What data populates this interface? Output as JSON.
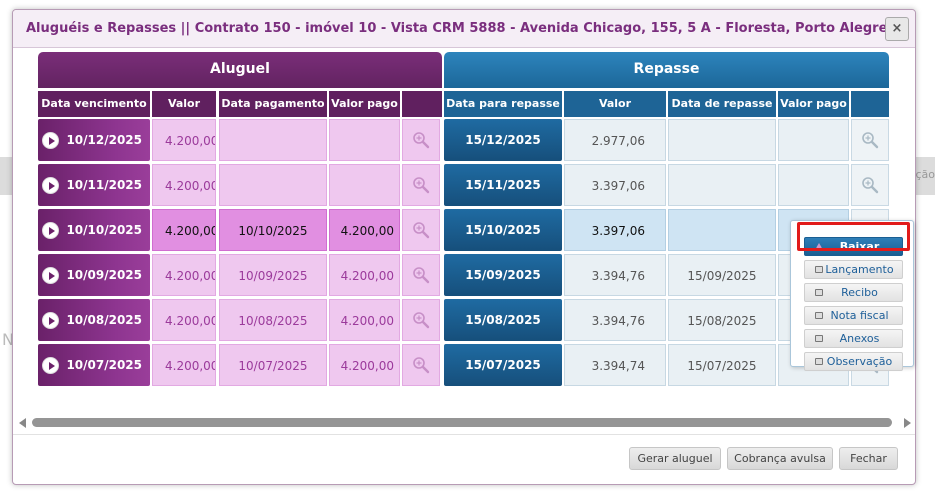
{
  "background": {
    "right_text": "ação",
    "left_letter": "N"
  },
  "dialog": {
    "title": "Aluguéis e Repasses || Contrato 150 - imóvel 10 - Vista CRM 5888 - Avenida Chicago, 155, 5 A - Floresta, Porto Alegre...",
    "close_label": "×"
  },
  "table": {
    "groups": {
      "aluguel": "Aluguel",
      "repasse": "Repasse"
    },
    "headers": [
      "Data vencimento",
      "Valor",
      "Data pagamento",
      "Valor pago",
      "",
      "Data para repasse",
      "Valor",
      "Data de repasse",
      "Valor pago",
      ""
    ],
    "rows": [
      {
        "venc": "10/12/2025",
        "valor": "4.200,00",
        "pag": "",
        "vpago": "",
        "drep": "15/12/2025",
        "rvalor": "2.977,06",
        "rdata": "",
        "rvpago": "",
        "state": "open"
      },
      {
        "venc": "10/11/2025",
        "valor": "4.200,00",
        "pag": "",
        "vpago": "",
        "drep": "15/11/2025",
        "rvalor": "3.397,06",
        "rdata": "",
        "rvpago": "",
        "state": "open"
      },
      {
        "venc": "10/10/2025",
        "valor": "4.200,00",
        "pag": "10/10/2025",
        "vpago": "4.200,00",
        "drep": "15/10/2025",
        "rvalor": "3.397,06",
        "rdata": "",
        "rvpago": "",
        "state": "selected"
      },
      {
        "venc": "10/09/2025",
        "valor": "4.200,00",
        "pag": "10/09/2025",
        "vpago": "4.200,00",
        "drep": "15/09/2025",
        "rvalor": "3.394,76",
        "rdata": "15/09/2025",
        "rvpago": "",
        "state": "paid"
      },
      {
        "venc": "10/08/2025",
        "valor": "4.200,00",
        "pag": "10/08/2025",
        "vpago": "4.200,00",
        "drep": "15/08/2025",
        "rvalor": "3.394,76",
        "rdata": "15/08/2025",
        "rvpago": "",
        "state": "paid"
      },
      {
        "venc": "10/07/2025",
        "valor": "4.200,00",
        "pag": "10/07/2025",
        "vpago": "4.200,00",
        "drep": "15/07/2025",
        "rvalor": "3.394,74",
        "rdata": "15/07/2025",
        "rvpago": "",
        "state": "paid"
      }
    ]
  },
  "context_menu": {
    "items": [
      "Baixar",
      "Lançamento",
      "Recibo",
      "Nota fiscal",
      "Anexos",
      "Observação"
    ],
    "highlighted": "Baixar"
  },
  "footer": {
    "buttons": [
      "Gerar aluguel",
      "Cobrança avulsa",
      "Fechar"
    ]
  },
  "colors": {
    "aluguel": "#7a2e79",
    "repasse": "#1f6ba2",
    "highlight_border": "#e21b1b"
  }
}
